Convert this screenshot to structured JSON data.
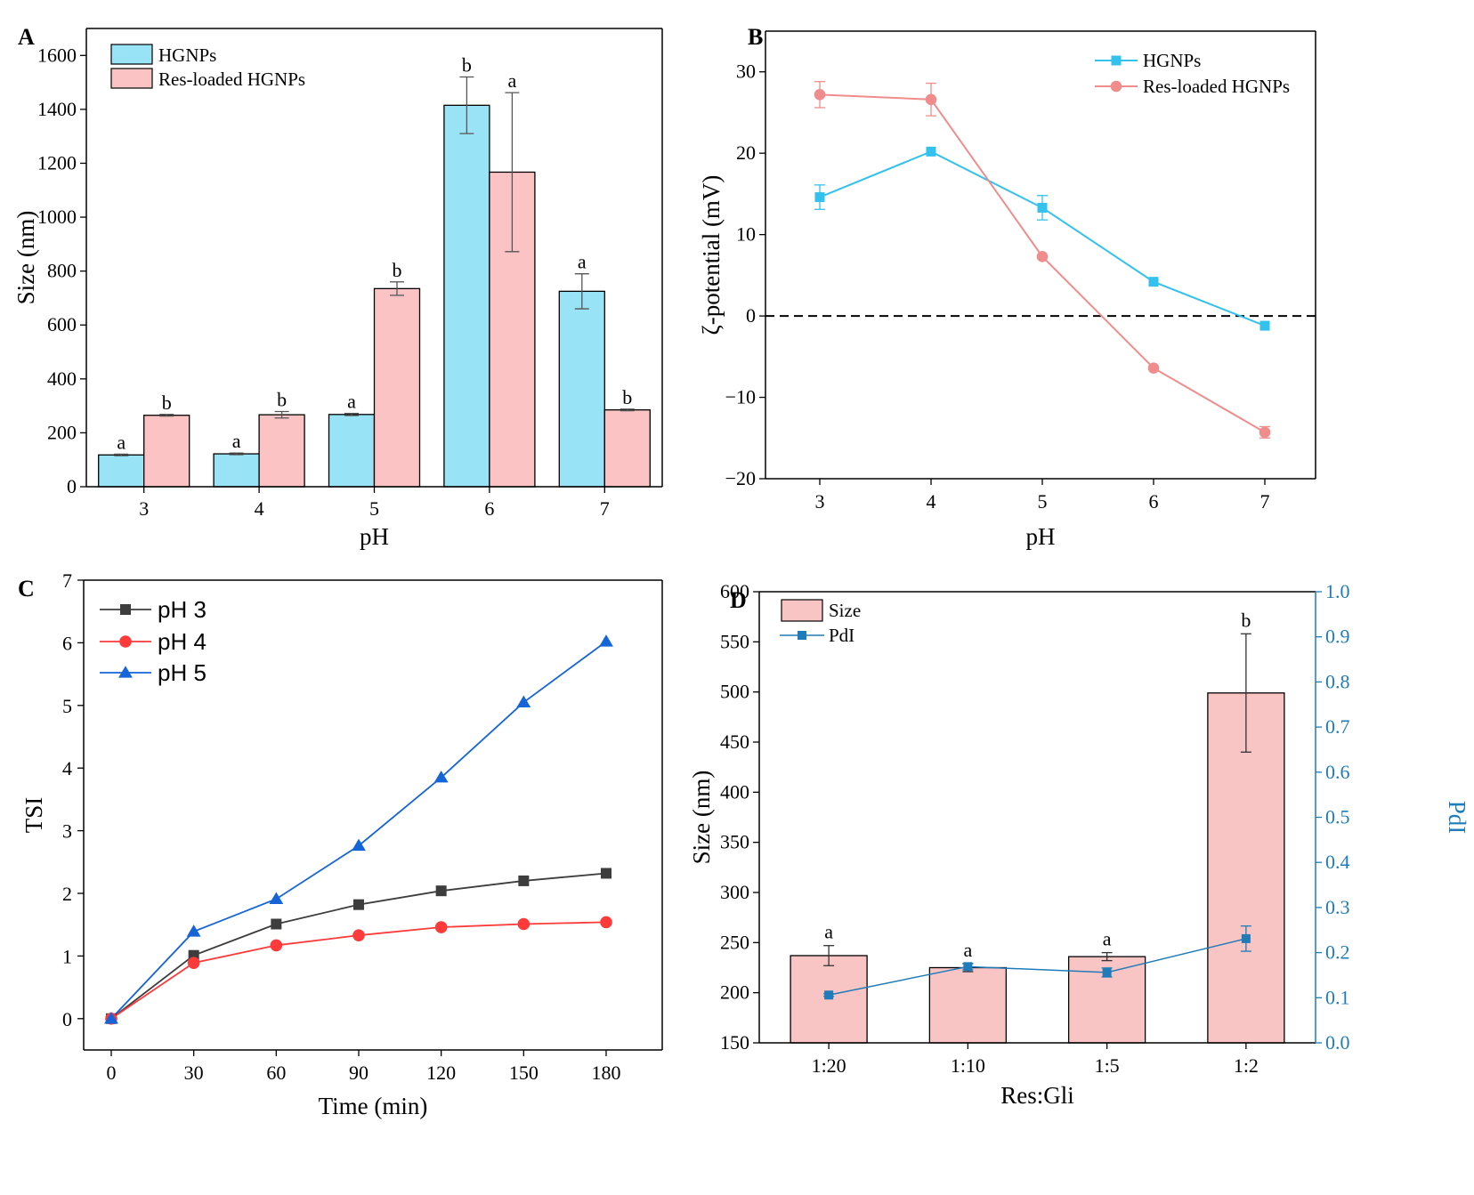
{
  "figure": {
    "colors": {
      "hgnps": "#99e3f6",
      "hgnps_line": "#33c1ee",
      "res": "#fbc3c3",
      "res_line": "#f08c8c",
      "d_bar": "#f9c4c4",
      "d_pdi": "#1f7cb8",
      "c_ph3": "#3d3d3d",
      "c_ph4": "#ff3a3a",
      "c_ph5": "#1565d8"
    },
    "chart_data": [
      {
        "id": "A",
        "panel_label": "A",
        "type": "bar",
        "xlabel": "pH",
        "ylabel": "Size (nm)",
        "categories": [
          "3",
          "4",
          "5",
          "6",
          "7"
        ],
        "ylim": [
          0,
          1700
        ],
        "yticks": [
          0,
          200,
          400,
          600,
          800,
          1000,
          1200,
          1400,
          1600
        ],
        "legend_position": "top-left",
        "series": [
          {
            "name": "HGNPs",
            "values": [
              118,
              122,
              268,
              1415,
              725
            ],
            "errors": [
              3,
              3,
              4,
              105,
              65
            ],
            "labels": [
              "a",
              "a",
              "a",
              "b",
              "a"
            ]
          },
          {
            "name": "Res-loaded HGNPs",
            "values": [
              265,
              267,
              735,
              1167,
              285
            ],
            "errors": [
              3,
              12,
              25,
              295,
              3
            ],
            "labels": [
              "b",
              "b",
              "b",
              "a",
              "b"
            ]
          }
        ]
      },
      {
        "id": "B",
        "panel_label": "B",
        "type": "line",
        "xlabel": "pH",
        "ylabel": "ζ-potential (mV)",
        "x": [
          3,
          4,
          5,
          6,
          7
        ],
        "xticks": [
          "3",
          "4",
          "5",
          "6",
          "7"
        ],
        "ylim": [
          -20,
          35
        ],
        "yticks": [
          -20,
          -10,
          0,
          10,
          20,
          30
        ],
        "ytick_labels": [
          "−20",
          "−10",
          "0",
          "10",
          "20",
          "30"
        ],
        "reference_line": 0,
        "legend_position": "top-right",
        "series": [
          {
            "name": "HGNPs",
            "marker": "square",
            "values": [
              14.6,
              20.2,
              13.3,
              4.2,
              -1.2
            ],
            "errors": [
              1.5,
              0.3,
              1.5,
              0.3,
              0.3
            ]
          },
          {
            "name": "Res-loaded HGNPs",
            "marker": "circle",
            "values": [
              27.2,
              26.6,
              7.3,
              -6.4,
              -14.3
            ],
            "errors": [
              1.6,
              2.0,
              0.3,
              0.3,
              0.7
            ]
          }
        ]
      },
      {
        "id": "C",
        "panel_label": "C",
        "type": "line",
        "xlabel": "Time (min)",
        "ylabel": "TSI",
        "x": [
          0,
          30,
          60,
          90,
          120,
          150,
          180
        ],
        "xticks": [
          "0",
          "30",
          "60",
          "90",
          "120",
          "150",
          "180"
        ],
        "ylim": [
          -0.5,
          7
        ],
        "yticks": [
          0,
          1,
          2,
          3,
          4,
          5,
          6,
          7
        ],
        "legend_position": "top-left",
        "series": [
          {
            "name": "pH 3",
            "marker": "square",
            "values": [
              0,
              1.01,
              1.51,
              1.82,
              2.04,
              2.2,
              2.32
            ]
          },
          {
            "name": "pH 4",
            "marker": "circle",
            "values": [
              0,
              0.89,
              1.17,
              1.33,
              1.46,
              1.51,
              1.54
            ]
          },
          {
            "name": "pH 5",
            "marker": "triangle",
            "values": [
              0,
              1.39,
              1.91,
              2.76,
              3.85,
              5.05,
              6.02
            ]
          }
        ]
      },
      {
        "id": "D",
        "panel_label": "D",
        "type": "bar",
        "xlabel": "Res:Gli",
        "ylabel": "Size (nm)",
        "y2label": "PdI",
        "categories": [
          "1:20",
          "1:10",
          "1:5",
          "1:2"
        ],
        "ylim": [
          150,
          600
        ],
        "yticks": [
          150,
          200,
          250,
          300,
          350,
          400,
          450,
          500,
          550,
          600
        ],
        "y2lim": [
          0.0,
          1.0
        ],
        "y2ticks": [
          "0.0",
          "0.1",
          "0.2",
          "0.3",
          "0.4",
          "0.5",
          "0.6",
          "0.7",
          "0.8",
          "0.9",
          "1.0"
        ],
        "legend_position": "top-left",
        "series": [
          {
            "name": "Size",
            "axis": "left",
            "values": [
              237,
              225,
              236,
              499
            ],
            "errors": [
              10,
              4,
              4,
              59
            ],
            "labels": [
              "a",
              "a",
              "a",
              "b"
            ]
          },
          {
            "name": "PdI",
            "axis": "right",
            "marker": "square",
            "values": [
              0.106,
              0.169,
              0.156,
              0.231
            ],
            "errors": [
              0.003,
              0.007,
              0.01,
              0.028
            ]
          }
        ]
      }
    ]
  }
}
